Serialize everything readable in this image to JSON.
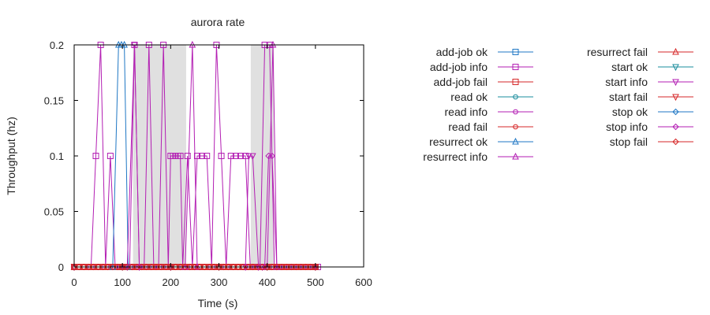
{
  "chart_data": {
    "type": "line",
    "title": "aurora rate",
    "xlabel": "Time (s)",
    "ylabel": "Throughput (hz)",
    "xlim": [
      0,
      600
    ],
    "ylim": [
      0,
      0.2
    ],
    "xticks": [
      "0",
      "100",
      "200",
      "300",
      "400",
      "500",
      "600"
    ],
    "yticks": [
      "0",
      "0.05",
      "0.1",
      "0.15",
      "0.2"
    ],
    "grid": false,
    "legend_position": "right",
    "shaded_regions": [
      [
        122,
        232
      ],
      [
        366,
        414
      ]
    ],
    "shade_color": "#e0e0e0",
    "series": [
      {
        "name": "add-job ok",
        "color": "#1f77c4",
        "marker": "square",
        "x": [
          0,
          10,
          20,
          30,
          40,
          50,
          60,
          70,
          80,
          90,
          95,
          100,
          105,
          110,
          115,
          120,
          130,
          140,
          150,
          160,
          170,
          180,
          190,
          200,
          210,
          220,
          230,
          240,
          250,
          260,
          270,
          280,
          290,
          300,
          310,
          320,
          330,
          340,
          350,
          360,
          370,
          380,
          390,
          400,
          410,
          420,
          430,
          440,
          450,
          460,
          470,
          480,
          490,
          500
        ],
        "y": [
          0,
          0,
          0,
          0,
          0,
          0,
          0,
          0,
          0,
          0,
          0,
          0,
          0,
          0,
          0,
          0,
          0,
          0,
          0,
          0,
          0,
          0,
          0,
          0,
          0,
          0,
          0,
          0,
          0,
          0,
          0,
          0,
          0,
          0,
          0,
          0,
          0,
          0,
          0,
          0,
          0,
          0,
          0,
          0,
          0,
          0,
          0,
          0,
          0,
          0,
          0,
          0,
          0,
          0
        ]
      },
      {
        "name": "add-job info",
        "color": "#b31eb3",
        "marker": "square",
        "x": [
          0,
          10,
          20,
          30,
          35,
          45,
          55,
          65,
          75,
          85,
          95,
          105,
          115,
          125,
          135,
          145,
          155,
          165,
          175,
          185,
          195,
          200,
          205,
          210,
          215,
          220,
          225,
          235,
          245,
          255,
          265,
          275,
          285,
          295,
          305,
          315,
          325,
          335,
          345,
          355,
          365,
          375,
          385,
          395,
          405,
          415,
          425,
          435,
          445,
          455,
          465,
          475,
          485,
          495,
          505
        ],
        "y": [
          0,
          0,
          0,
          0,
          0,
          0.1,
          0.2,
          0,
          0.1,
          0,
          0,
          0,
          0,
          0.2,
          0,
          0,
          0.2,
          0,
          0,
          0.2,
          0,
          0.1,
          0.1,
          0.1,
          0.1,
          0.1,
          0,
          0.1,
          0,
          0.1,
          0.1,
          0.1,
          0,
          0.2,
          0.1,
          0,
          0.1,
          0.1,
          0.1,
          0.1,
          0,
          0,
          0,
          0.2,
          0.2,
          0,
          0,
          0,
          0,
          0,
          0,
          0,
          0,
          0,
          0
        ]
      },
      {
        "name": "add-job fail",
        "color": "#d62728",
        "marker": "square",
        "x": [
          0,
          10,
          20,
          30,
          40,
          50,
          60,
          70,
          80,
          90,
          100,
          110,
          120,
          130,
          140,
          150,
          160,
          170,
          180,
          190,
          200,
          210,
          220,
          230,
          240,
          250,
          260,
          270,
          280,
          290,
          300,
          310,
          320,
          330,
          340,
          350,
          360,
          370,
          380,
          390,
          400,
          410,
          420,
          430,
          440,
          450,
          460,
          470,
          480,
          490,
          500
        ],
        "y": [
          0,
          0,
          0,
          0,
          0,
          0,
          0,
          0,
          0,
          0,
          0,
          0,
          0,
          0,
          0,
          0,
          0,
          0,
          0,
          0,
          0,
          0,
          0,
          0,
          0,
          0,
          0,
          0,
          0,
          0,
          0,
          0,
          0,
          0,
          0,
          0,
          0,
          0,
          0,
          0,
          0,
          0,
          0,
          0,
          0,
          0,
          0,
          0,
          0,
          0,
          0
        ]
      },
      {
        "name": "read ok",
        "color": "#1a8c9c",
        "marker": "circle",
        "x": [
          0,
          50,
          100,
          150,
          200,
          250,
          300,
          350,
          400,
          450,
          500
        ],
        "y": [
          0,
          0,
          0,
          0,
          0,
          0,
          0,
          0,
          0,
          0,
          0
        ]
      },
      {
        "name": "read info",
        "color": "#b31eb3",
        "marker": "circle",
        "x": [
          0,
          50,
          100,
          150,
          200,
          250,
          300,
          350,
          400,
          450,
          500
        ],
        "y": [
          0,
          0,
          0,
          0,
          0,
          0,
          0,
          0,
          0,
          0,
          0
        ]
      },
      {
        "name": "read fail",
        "color": "#d62728",
        "marker": "circle",
        "x": [
          0,
          10,
          20,
          30,
          40,
          50,
          60,
          70,
          80,
          90,
          100,
          110,
          120,
          130,
          140,
          150,
          160,
          170,
          180,
          190,
          200,
          210,
          220,
          230,
          240,
          250,
          260,
          270,
          280,
          290,
          300,
          310,
          320,
          330,
          340,
          350,
          360,
          370,
          380,
          390,
          400,
          410,
          420,
          430,
          440,
          450,
          460,
          470,
          480,
          490,
          500
        ],
        "y": [
          0,
          0,
          0,
          0,
          0,
          0,
          0,
          0,
          0,
          0,
          0,
          0,
          0,
          0,
          0,
          0,
          0,
          0,
          0,
          0,
          0,
          0,
          0,
          0,
          0,
          0,
          0,
          0,
          0,
          0,
          0,
          0,
          0,
          0,
          0,
          0,
          0,
          0,
          0,
          0,
          0,
          0,
          0,
          0,
          0,
          0,
          0,
          0,
          0,
          0,
          0
        ]
      },
      {
        "name": "resurrect ok",
        "color": "#1f77c4",
        "marker": "triangle",
        "x": [
          0,
          80,
          92,
          98,
          104,
          112,
          200,
          300,
          400,
          500
        ],
        "y": [
          0,
          0,
          0.2,
          0.2,
          0.2,
          0,
          0,
          0,
          0,
          0
        ]
      },
      {
        "name": "resurrect info",
        "color": "#b31eb3",
        "marker": "triangle",
        "x": [
          0,
          100,
          200,
          230,
          245,
          255,
          300,
          400,
          412,
          420,
          500
        ],
        "y": [
          0,
          0,
          0,
          0,
          0.2,
          0,
          0,
          0,
          0.2,
          0,
          0
        ]
      },
      {
        "name": "resurrect fail",
        "color": "#d62728",
        "marker": "triangle",
        "x": [
          0,
          100,
          200,
          300,
          400,
          500
        ],
        "y": [
          0,
          0,
          0,
          0,
          0,
          0
        ]
      },
      {
        "name": "start ok",
        "color": "#1a8c9c",
        "marker": "triangle-down",
        "x": [
          0,
          100,
          200,
          300,
          400,
          500
        ],
        "y": [
          0,
          0,
          0,
          0,
          0,
          0
        ]
      },
      {
        "name": "start info",
        "color": "#b31eb3",
        "marker": "triangle-down",
        "x": [
          0,
          110,
          125,
          135,
          200,
          355,
          362,
          370,
          382,
          390,
          500
        ],
        "y": [
          0,
          0,
          0.2,
          0,
          0,
          0,
          0.1,
          0.1,
          0,
          0,
          0
        ]
      },
      {
        "name": "start fail",
        "color": "#d62728",
        "marker": "triangle-down",
        "x": [
          0,
          100,
          200,
          300,
          400,
          500
        ],
        "y": [
          0,
          0,
          0,
          0,
          0,
          0
        ]
      },
      {
        "name": "stop ok",
        "color": "#1f77c4",
        "marker": "diamond",
        "x": [
          0,
          100,
          200,
          300,
          400,
          500
        ],
        "y": [
          0,
          0,
          0,
          0,
          0,
          0
        ]
      },
      {
        "name": "stop info",
        "color": "#b31eb3",
        "marker": "diamond",
        "x": [
          0,
          395,
          403,
          410,
          420,
          500
        ],
        "y": [
          0,
          0,
          0.1,
          0.1,
          0,
          0
        ]
      },
      {
        "name": "stop fail",
        "color": "#d62728",
        "marker": "diamond",
        "x": [
          0,
          10,
          20,
          30,
          40,
          50,
          60,
          70,
          80,
          90,
          100,
          110,
          120,
          130,
          140,
          150,
          160,
          170,
          180,
          190,
          200,
          210,
          220,
          230,
          240,
          250,
          260,
          270,
          280,
          290,
          300,
          310,
          320,
          330,
          340,
          350,
          360,
          370,
          380,
          390,
          400,
          410,
          420,
          430,
          440,
          450,
          460,
          470,
          480,
          490,
          500
        ],
        "y": [
          0,
          0,
          0,
          0,
          0,
          0,
          0,
          0,
          0,
          0,
          0,
          0,
          0,
          0,
          0,
          0,
          0,
          0,
          0,
          0,
          0,
          0,
          0,
          0,
          0,
          0,
          0,
          0,
          0,
          0,
          0,
          0,
          0,
          0,
          0,
          0,
          0,
          0,
          0,
          0,
          0,
          0,
          0,
          0,
          0,
          0,
          0,
          0,
          0,
          0,
          0
        ]
      }
    ]
  }
}
